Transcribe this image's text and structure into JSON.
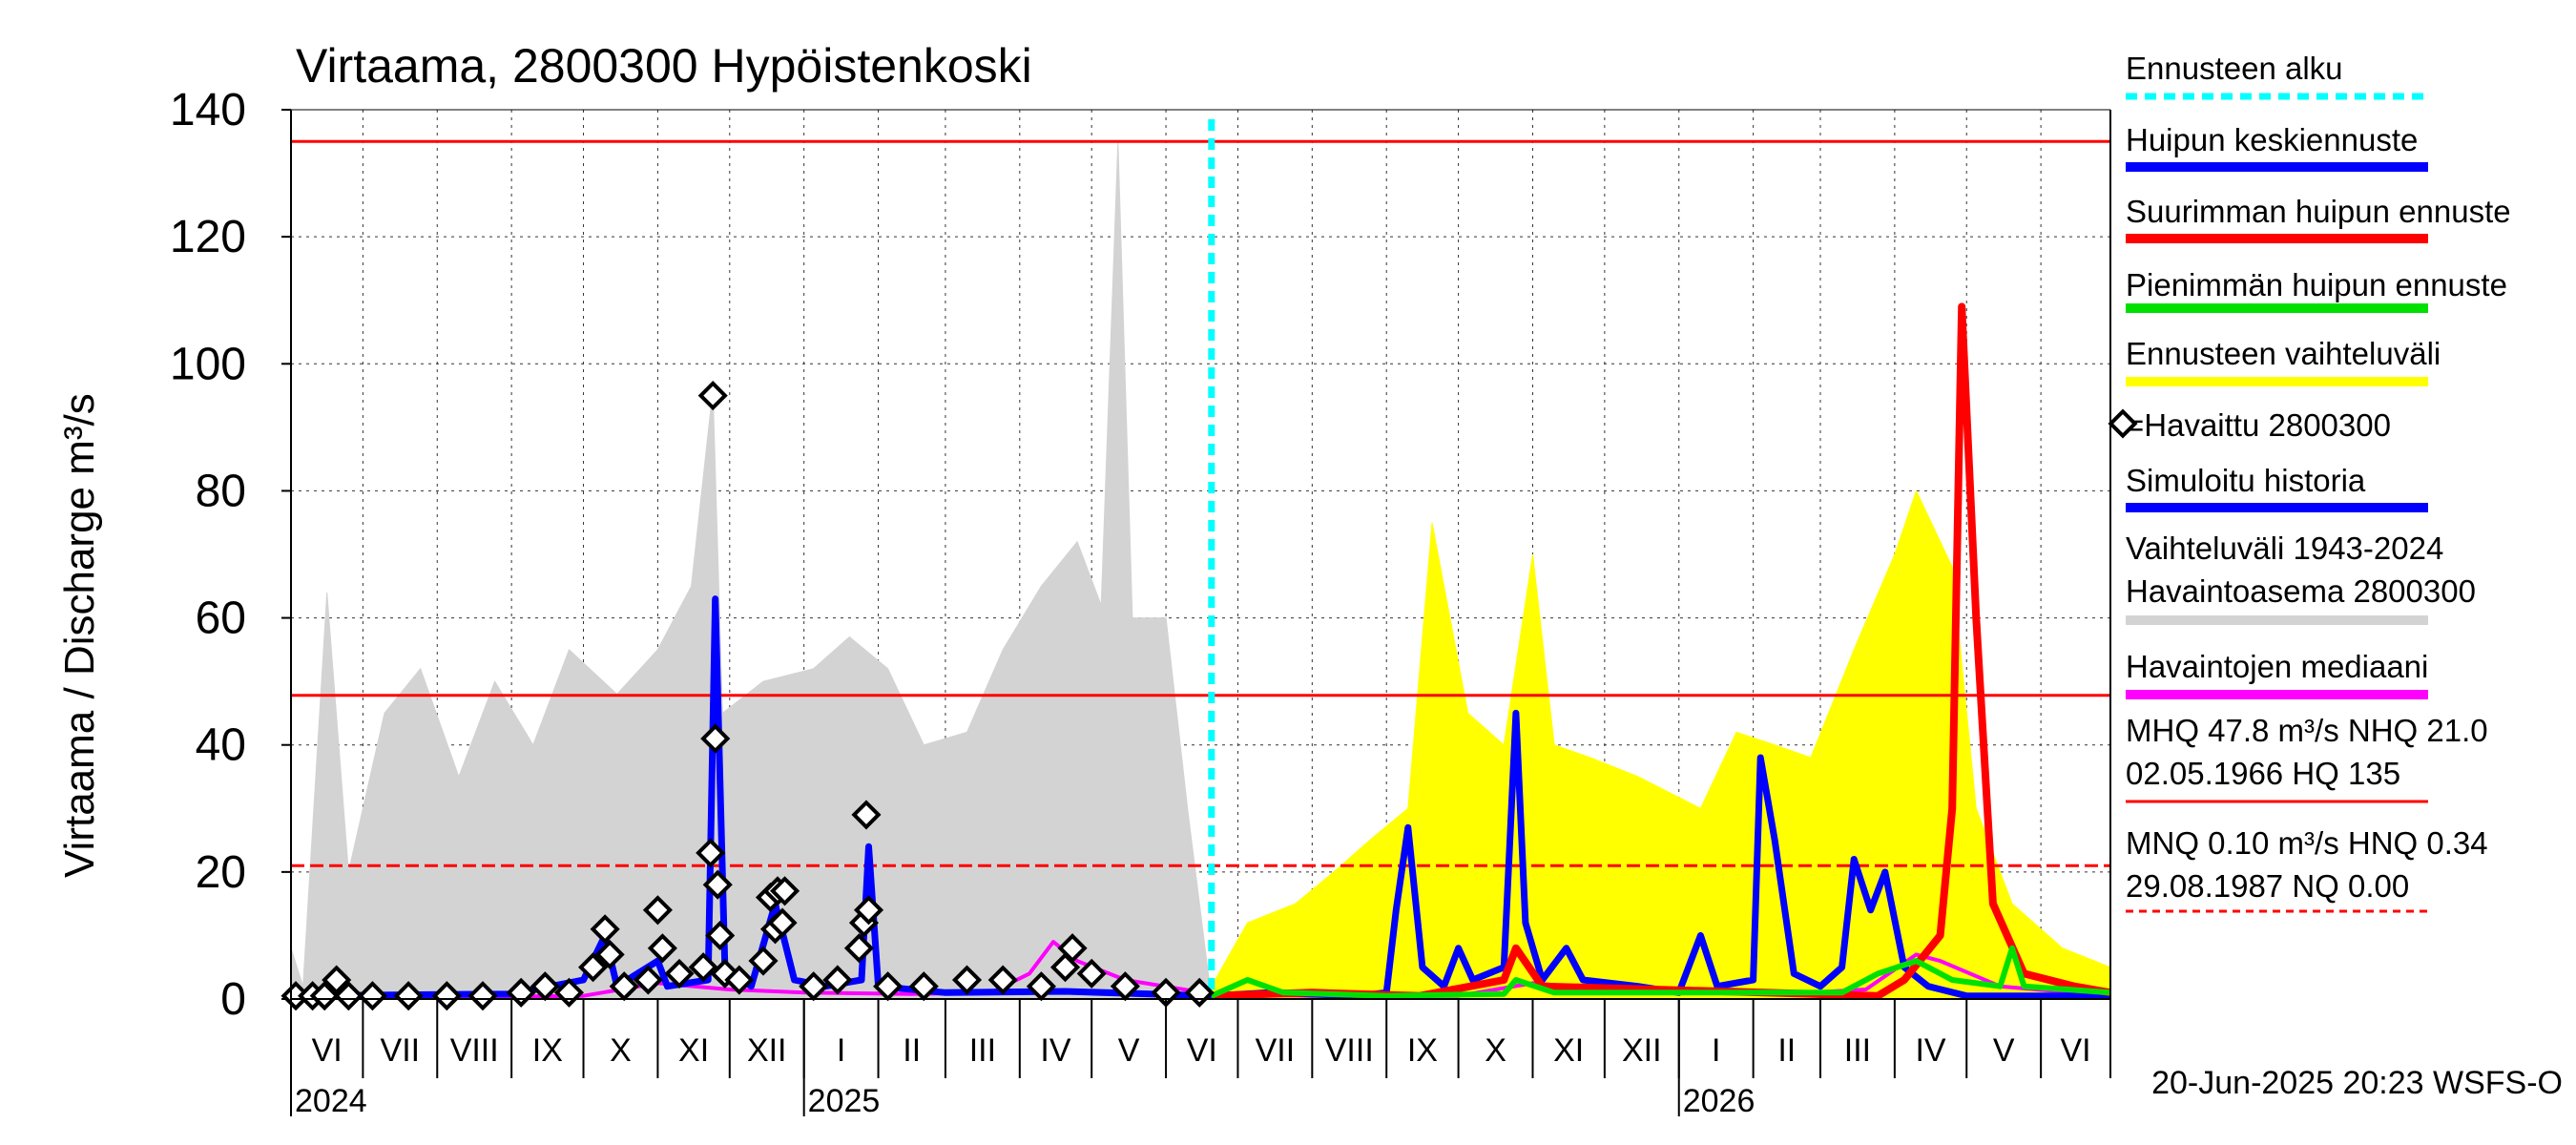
{
  "chart_data": {
    "type": "line",
    "title": "Virtaama, 2800300 Hypöistenkoski",
    "ylabel": "Virtaama / Discharge    m³/s",
    "ylim": [
      0,
      140
    ],
    "yticks": [
      0,
      20,
      40,
      60,
      80,
      100,
      120,
      140
    ],
    "x_range": [
      "2024-06-01",
      "2026-06-30"
    ],
    "month_labels": [
      "VI",
      "VII",
      "VIII",
      "IX",
      "X",
      "XI",
      "XII",
      "I",
      "II",
      "III",
      "IV",
      "V",
      "VI",
      "VII",
      "VIII",
      "IX",
      "X",
      "XI",
      "XII",
      "I",
      "II",
      "III",
      "IV",
      "V",
      "VI"
    ],
    "year_labels": [
      {
        "year": "2024",
        "date": "2024-06-01"
      },
      {
        "year": "2025",
        "date": "2025-01-01"
      },
      {
        "year": "2026",
        "date": "2026-01-01"
      }
    ],
    "grid": true,
    "forecast_start": "2025-06-20",
    "reference_lines": [
      {
        "name": "HQ",
        "value": 135,
        "color": "#ff0000",
        "style": "solid"
      },
      {
        "name": "MHQ",
        "value": 47.8,
        "color": "#ff0000",
        "style": "solid"
      },
      {
        "name": "NHQ",
        "value": 21.0,
        "color": "#ff0000",
        "style": "dashed"
      }
    ],
    "series": [
      {
        "name": "Vaihteluväli 1943-2024 Havaintoasema 2800300",
        "kind": "band",
        "color": "#d3d3d3",
        "points": [
          [
            "2024-06-01",
            8
          ],
          [
            "2024-06-06",
            2
          ],
          [
            "2024-06-16",
            64
          ],
          [
            "2024-06-25",
            20
          ],
          [
            "2024-07-10",
            45
          ],
          [
            "2024-07-25",
            52
          ],
          [
            "2024-08-10",
            35
          ],
          [
            "2024-08-25",
            50
          ],
          [
            "2024-09-10",
            40
          ],
          [
            "2024-09-25",
            55
          ],
          [
            "2024-10-15",
            48
          ],
          [
            "2024-11-01",
            55
          ],
          [
            "2024-11-15",
            65
          ],
          [
            "2024-11-24",
            96
          ],
          [
            "2024-11-28",
            45
          ],
          [
            "2024-12-15",
            50
          ],
          [
            "2025-01-05",
            52
          ],
          [
            "2025-01-20",
            57
          ],
          [
            "2025-02-05",
            52
          ],
          [
            "2025-02-20",
            40
          ],
          [
            "2025-03-10",
            42
          ],
          [
            "2025-03-25",
            55
          ],
          [
            "2025-04-10",
            65
          ],
          [
            "2025-04-25",
            72
          ],
          [
            "2025-05-05",
            62
          ],
          [
            "2025-05-12",
            135
          ],
          [
            "2025-05-18",
            60
          ],
          [
            "2025-06-01",
            60
          ],
          [
            "2025-06-10",
            30
          ],
          [
            "2025-06-20",
            0
          ]
        ]
      },
      {
        "name": "Ennusteen vaihteluväli",
        "kind": "band",
        "color": "#ffff00",
        "points": [
          [
            "2025-06-20",
            2
          ],
          [
            "2025-07-05",
            12
          ],
          [
            "2025-07-25",
            15
          ],
          [
            "2025-08-10",
            20
          ],
          [
            "2025-08-25",
            25
          ],
          [
            "2025-09-10",
            30
          ],
          [
            "2025-09-20",
            75
          ],
          [
            "2025-10-05",
            45
          ],
          [
            "2025-10-20",
            40
          ],
          [
            "2025-11-01",
            70
          ],
          [
            "2025-11-10",
            40
          ],
          [
            "2025-11-25",
            38
          ],
          [
            "2025-12-15",
            35
          ],
          [
            "2026-01-10",
            30
          ],
          [
            "2026-01-25",
            42
          ],
          [
            "2026-02-10",
            40
          ],
          [
            "2026-02-25",
            38
          ],
          [
            "2026-03-15",
            55
          ],
          [
            "2026-04-01",
            70
          ],
          [
            "2026-04-10",
            80
          ],
          [
            "2026-04-25",
            68
          ],
          [
            "2026-05-05",
            30
          ],
          [
            "2026-05-20",
            15
          ],
          [
            "2026-06-10",
            8
          ],
          [
            "2026-06-30",
            5
          ]
        ]
      },
      {
        "name": "Havaintojen mediaani",
        "kind": "line",
        "color": "#ff00ff",
        "points": [
          [
            "2024-06-01",
            0.5
          ],
          [
            "2024-08-01",
            0.3
          ],
          [
            "2024-10-01",
            0.5
          ],
          [
            "2024-11-01",
            2.5
          ],
          [
            "2024-12-01",
            1.5
          ],
          [
            "2025-01-01",
            1.0
          ],
          [
            "2025-02-15",
            0.8
          ],
          [
            "2025-03-20",
            1.0
          ],
          [
            "2025-04-05",
            4
          ],
          [
            "2025-04-15",
            9
          ],
          [
            "2025-04-25",
            6
          ],
          [
            "2025-05-15",
            3
          ],
          [
            "2025-06-20",
            0.8
          ],
          [
            "2025-08-01",
            0.5
          ],
          [
            "2025-10-01",
            0.5
          ],
          [
            "2025-11-01",
            2.5
          ],
          [
            "2025-12-01",
            1.5
          ],
          [
            "2026-01-01",
            1.0
          ],
          [
            "2026-02-15",
            0.8
          ],
          [
            "2026-03-20",
            1.5
          ],
          [
            "2026-04-10",
            7
          ],
          [
            "2026-04-20",
            6
          ],
          [
            "2026-05-15",
            2
          ],
          [
            "2026-06-30",
            0.5
          ]
        ]
      },
      {
        "name": "Simuloitu historia",
        "kind": "line",
        "color": "#0000ff",
        "points": [
          [
            "2024-06-01",
            0.5
          ],
          [
            "2024-09-01",
            0.8
          ],
          [
            "2024-10-01",
            3
          ],
          [
            "2024-10-10",
            10
          ],
          [
            "2024-10-15",
            2
          ],
          [
            "2024-11-01",
            6
          ],
          [
            "2024-11-05",
            2
          ],
          [
            "2024-11-22",
            3
          ],
          [
            "2024-11-25",
            63
          ],
          [
            "2024-11-29",
            5
          ],
          [
            "2024-12-10",
            2
          ],
          [
            "2024-12-20",
            15
          ],
          [
            "2024-12-28",
            3
          ],
          [
            "2025-01-10",
            2
          ],
          [
            "2025-01-25",
            3
          ],
          [
            "2025-01-28",
            24
          ],
          [
            "2025-02-01",
            2
          ],
          [
            "2025-03-01",
            1
          ],
          [
            "2025-04-20",
            1.2
          ],
          [
            "2025-06-20",
            0.5
          ]
        ]
      },
      {
        "name": "Huipun keskiennuste",
        "kind": "line",
        "color": "#0000ff",
        "points": [
          [
            "2025-06-20",
            0.5
          ],
          [
            "2025-07-15",
            1
          ],
          [
            "2025-08-20",
            0.5
          ],
          [
            "2025-09-01",
            1
          ],
          [
            "2025-09-05",
            14
          ],
          [
            "2025-09-10",
            27
          ],
          [
            "2025-09-16",
            5
          ],
          [
            "2025-09-25",
            2
          ],
          [
            "2025-10-01",
            8
          ],
          [
            "2025-10-07",
            3
          ],
          [
            "2025-10-20",
            5
          ],
          [
            "2025-10-25",
            45
          ],
          [
            "2025-10-29",
            12
          ],
          [
            "2025-11-05",
            3
          ],
          [
            "2025-11-15",
            8
          ],
          [
            "2025-11-22",
            3
          ],
          [
            "2025-12-15",
            2
          ],
          [
            "2026-01-01",
            1
          ],
          [
            "2026-01-10",
            10
          ],
          [
            "2026-01-17",
            2
          ],
          [
            "2026-02-01",
            3
          ],
          [
            "2026-02-04",
            38
          ],
          [
            "2026-02-10",
            25
          ],
          [
            "2026-02-18",
            4
          ],
          [
            "2026-03-01",
            2
          ],
          [
            "2026-03-10",
            5
          ],
          [
            "2026-03-15",
            22
          ],
          [
            "2026-03-22",
            14
          ],
          [
            "2026-03-28",
            20
          ],
          [
            "2026-04-05",
            5
          ],
          [
            "2026-04-15",
            2
          ],
          [
            "2026-05-01",
            0.5
          ],
          [
            "2026-06-30",
            0.5
          ]
        ]
      },
      {
        "name": "Suurimman huipun ennuste",
        "kind": "line",
        "color": "#ff0000",
        "points": [
          [
            "2025-06-20",
            0.5
          ],
          [
            "2025-08-01",
            1
          ],
          [
            "2025-09-15",
            0.5
          ],
          [
            "2025-10-20",
            3
          ],
          [
            "2025-10-25",
            8
          ],
          [
            "2025-11-05",
            2
          ],
          [
            "2026-03-25",
            0.5
          ],
          [
            "2026-04-05",
            3
          ],
          [
            "2026-04-20",
            10
          ],
          [
            "2026-04-25",
            30
          ],
          [
            "2026-04-29",
            109
          ],
          [
            "2026-05-05",
            60
          ],
          [
            "2026-05-12",
            15
          ],
          [
            "2026-05-25",
            4
          ],
          [
            "2026-06-15",
            2
          ],
          [
            "2026-06-30",
            1
          ]
        ]
      },
      {
        "name": "Pienimmän huipun ennuste",
        "kind": "line",
        "color": "#00e000",
        "points": [
          [
            "2025-06-20",
            0.5
          ],
          [
            "2025-07-05",
            3
          ],
          [
            "2025-07-20",
            1
          ],
          [
            "2025-09-01",
            0.5
          ],
          [
            "2025-10-20",
            0.8
          ],
          [
            "2025-10-25",
            3
          ],
          [
            "2025-11-10",
            1
          ],
          [
            "2026-03-10",
            1
          ],
          [
            "2026-03-25",
            4
          ],
          [
            "2026-04-10",
            6
          ],
          [
            "2026-04-25",
            3
          ],
          [
            "2026-05-15",
            2
          ],
          [
            "2026-05-20",
            8
          ],
          [
            "2026-05-25",
            2
          ],
          [
            "2026-06-30",
            1
          ]
        ]
      },
      {
        "name": "=Havaittu 2800300",
        "kind": "points",
        "color": "#000000",
        "points": [
          [
            "2024-06-03",
            0.5
          ],
          [
            "2024-06-10",
            0.5
          ],
          [
            "2024-06-15",
            0.5
          ],
          [
            "2024-06-20",
            3
          ],
          [
            "2024-06-25",
            0.5
          ],
          [
            "2024-07-05",
            0.5
          ],
          [
            "2024-07-20",
            0.5
          ],
          [
            "2024-08-05",
            0.5
          ],
          [
            "2024-08-20",
            0.5
          ],
          [
            "2024-09-05",
            1
          ],
          [
            "2024-09-15",
            2
          ],
          [
            "2024-09-25",
            1
          ],
          [
            "2024-10-05",
            5
          ],
          [
            "2024-10-10",
            11
          ],
          [
            "2024-10-12",
            7
          ],
          [
            "2024-10-18",
            2
          ],
          [
            "2024-10-28",
            3
          ],
          [
            "2024-11-01",
            14
          ],
          [
            "2024-11-03",
            8
          ],
          [
            "2024-11-10",
            4
          ],
          [
            "2024-11-20",
            5
          ],
          [
            "2024-11-23",
            23
          ],
          [
            "2024-11-24",
            95
          ],
          [
            "2024-11-25",
            41
          ],
          [
            "2024-11-26",
            18
          ],
          [
            "2024-11-27",
            10
          ],
          [
            "2024-11-29",
            4
          ],
          [
            "2024-12-05",
            3
          ],
          [
            "2024-12-15",
            6
          ],
          [
            "2024-12-18",
            16
          ],
          [
            "2024-12-20",
            11
          ],
          [
            "2024-12-21",
            17
          ],
          [
            "2024-12-23",
            12
          ],
          [
            "2024-12-24",
            17
          ],
          [
            "2025-01-05",
            2
          ],
          [
            "2025-01-15",
            3
          ],
          [
            "2025-01-24",
            8
          ],
          [
            "2025-01-26",
            12
          ],
          [
            "2025-01-27",
            29
          ],
          [
            "2025-01-28",
            14
          ],
          [
            "2025-02-05",
            2
          ],
          [
            "2025-02-20",
            2
          ],
          [
            "2025-03-10",
            3
          ],
          [
            "2025-03-25",
            3
          ],
          [
            "2025-04-10",
            2
          ],
          [
            "2025-04-20",
            5
          ],
          [
            "2025-04-23",
            8
          ],
          [
            "2025-05-01",
            4
          ],
          [
            "2025-05-15",
            2
          ],
          [
            "2025-06-01",
            1
          ],
          [
            "2025-06-15",
            1
          ]
        ]
      }
    ]
  },
  "legend": {
    "items": [
      {
        "label": "Ennusteen alku",
        "color": "#00ffff",
        "style": "dotted"
      },
      {
        "label": "Huipun keskiennuste",
        "color": "#0000ff",
        "style": "solid"
      },
      {
        "label": "Suurimman huipun ennuste",
        "color": "#ff0000",
        "style": "solid"
      },
      {
        "label": "Pienimmän huipun ennuste",
        "color": "#00e000",
        "style": "solid"
      },
      {
        "label": "Ennusteen vaihteluväli",
        "color": "#ffff00",
        "style": "solid"
      },
      {
        "label": "=Havaittu 2800300",
        "color": "#000000",
        "style": "marker"
      },
      {
        "label": "Simuloitu historia",
        "color": "#0000ff",
        "style": "solid"
      },
      {
        "label": "Vaihteluväli 1943-2024",
        "label2": " Havaintoasema 2800300",
        "color": "#d3d3d3",
        "style": "solid"
      },
      {
        "label": "Havaintojen mediaani",
        "color": "#ff00ff",
        "style": "solid"
      },
      {
        "label": "MHQ 47.8 m³/s NHQ 21.0",
        "label2": "02.05.1966 HQ  135",
        "color": "#ff0000",
        "style": "thin"
      },
      {
        "label": "MNQ 0.10 m³/s HNQ 0.34",
        "label2": "29.08.1987 NQ 0.00",
        "color": "#ff0000",
        "style": "dashed"
      }
    ]
  },
  "footer": {
    "timestamp": "20-Jun-2025 20:23 WSFS-O"
  }
}
